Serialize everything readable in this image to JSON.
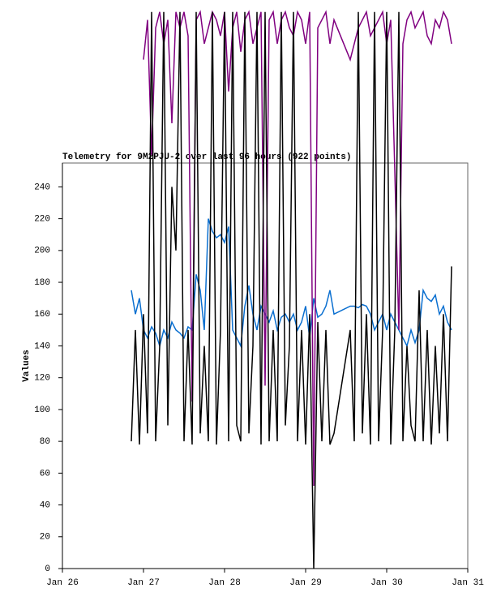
{
  "chart_data": {
    "type": "line",
    "title": "Telemetry for 9M2PJU-2 over last 96 hours (922 points)",
    "y_label": "Values",
    "x": [
      26.85,
      26.9,
      26.95,
      27.0,
      27.05,
      27.1,
      27.15,
      27.2,
      27.25,
      27.3,
      27.35,
      27.4,
      27.45,
      27.5,
      27.55,
      27.6,
      27.65,
      27.7,
      27.75,
      27.8,
      27.85,
      27.9,
      27.95,
      28.0,
      28.05,
      28.1,
      28.15,
      28.2,
      28.25,
      28.3,
      28.35,
      28.4,
      28.45,
      28.5,
      28.55,
      28.6,
      28.65,
      28.7,
      28.75,
      28.8,
      28.85,
      28.9,
      28.95,
      29.0,
      29.05,
      29.1,
      29.15,
      29.2,
      29.25,
      29.3,
      29.35,
      29.55,
      29.6,
      29.65,
      29.7,
      29.75,
      29.8,
      29.85,
      29.9,
      29.95,
      30.0,
      30.05,
      30.1,
      30.15,
      30.2,
      30.25,
      30.3,
      30.35,
      30.4,
      30.45,
      30.5,
      30.55,
      30.6,
      30.65,
      30.7,
      30.75,
      30.8
    ],
    "series": [
      {
        "name": "blue",
        "color": "#0a6fd0",
        "values": [
          175,
          160,
          170,
          150,
          145,
          152,
          148,
          140,
          150,
          145,
          155,
          150,
          148,
          145,
          152,
          150,
          185,
          175,
          150,
          220,
          212,
          208,
          210,
          205,
          215,
          150,
          145,
          140,
          165,
          178,
          160,
          150,
          165,
          160,
          155,
          162,
          150,
          158,
          160,
          155,
          160,
          150,
          155,
          165,
          145,
          170,
          158,
          160,
          165,
          175,
          160,
          165,
          165,
          164,
          166,
          165,
          160,
          150,
          155,
          160,
          150,
          160,
          155,
          150,
          145,
          140,
          150,
          142,
          150,
          175,
          170,
          168,
          172,
          160,
          165,
          155,
          150
        ]
      },
      {
        "name": "purple",
        "color": "#800080",
        "values": [
          null,
          null,
          null,
          320,
          345,
          260,
          340,
          350,
          330,
          345,
          280,
          350,
          340,
          350,
          335,
          105,
          345,
          350,
          330,
          340,
          350,
          345,
          335,
          350,
          300,
          340,
          350,
          325,
          345,
          350,
          330,
          340,
          350,
          115,
          345,
          350,
          330,
          345,
          350,
          340,
          335,
          350,
          345,
          330,
          350,
          52,
          340,
          345,
          350,
          330,
          345,
          320,
          330,
          340,
          345,
          350,
          335,
          340,
          345,
          350,
          330,
          345,
          250,
          150,
          330,
          345,
          350,
          340,
          345,
          350,
          335,
          330,
          345,
          340,
          350,
          345,
          330
        ]
      },
      {
        "name": "black",
        "color": "#000000",
        "values": [
          80,
          150,
          78,
          160,
          85,
          350,
          80,
          140,
          350,
          90,
          240,
          200,
          350,
          80,
          150,
          78,
          350,
          85,
          140,
          80,
          350,
          78,
          150,
          350,
          80,
          350,
          90,
          80,
          350,
          85,
          140,
          350,
          78,
          350,
          80,
          150,
          80,
          350,
          90,
          140,
          350,
          80,
          150,
          78,
          160,
          0,
          155,
          80,
          150,
          78,
          85,
          150,
          80,
          350,
          85,
          160,
          78,
          350,
          80,
          150,
          350,
          78,
          150,
          350,
          80,
          140,
          90,
          80,
          175,
          80,
          150,
          78,
          140,
          85,
          160,
          80,
          190
        ]
      }
    ],
    "xlim": [
      26,
      31
    ],
    "xticks": [
      {
        "value": 26,
        "label": "Jan 26"
      },
      {
        "value": 27,
        "label": "Jan 27"
      },
      {
        "value": 28,
        "label": "Jan 28"
      },
      {
        "value": 29,
        "label": "Jan 29"
      },
      {
        "value": 30,
        "label": "Jan 30"
      },
      {
        "value": 31,
        "label": "Jan 31"
      }
    ],
    "ylim": [
      0,
      255
    ],
    "yticks": [
      0,
      20,
      40,
      60,
      80,
      100,
      120,
      140,
      160,
      180,
      200,
      220,
      240
    ]
  }
}
